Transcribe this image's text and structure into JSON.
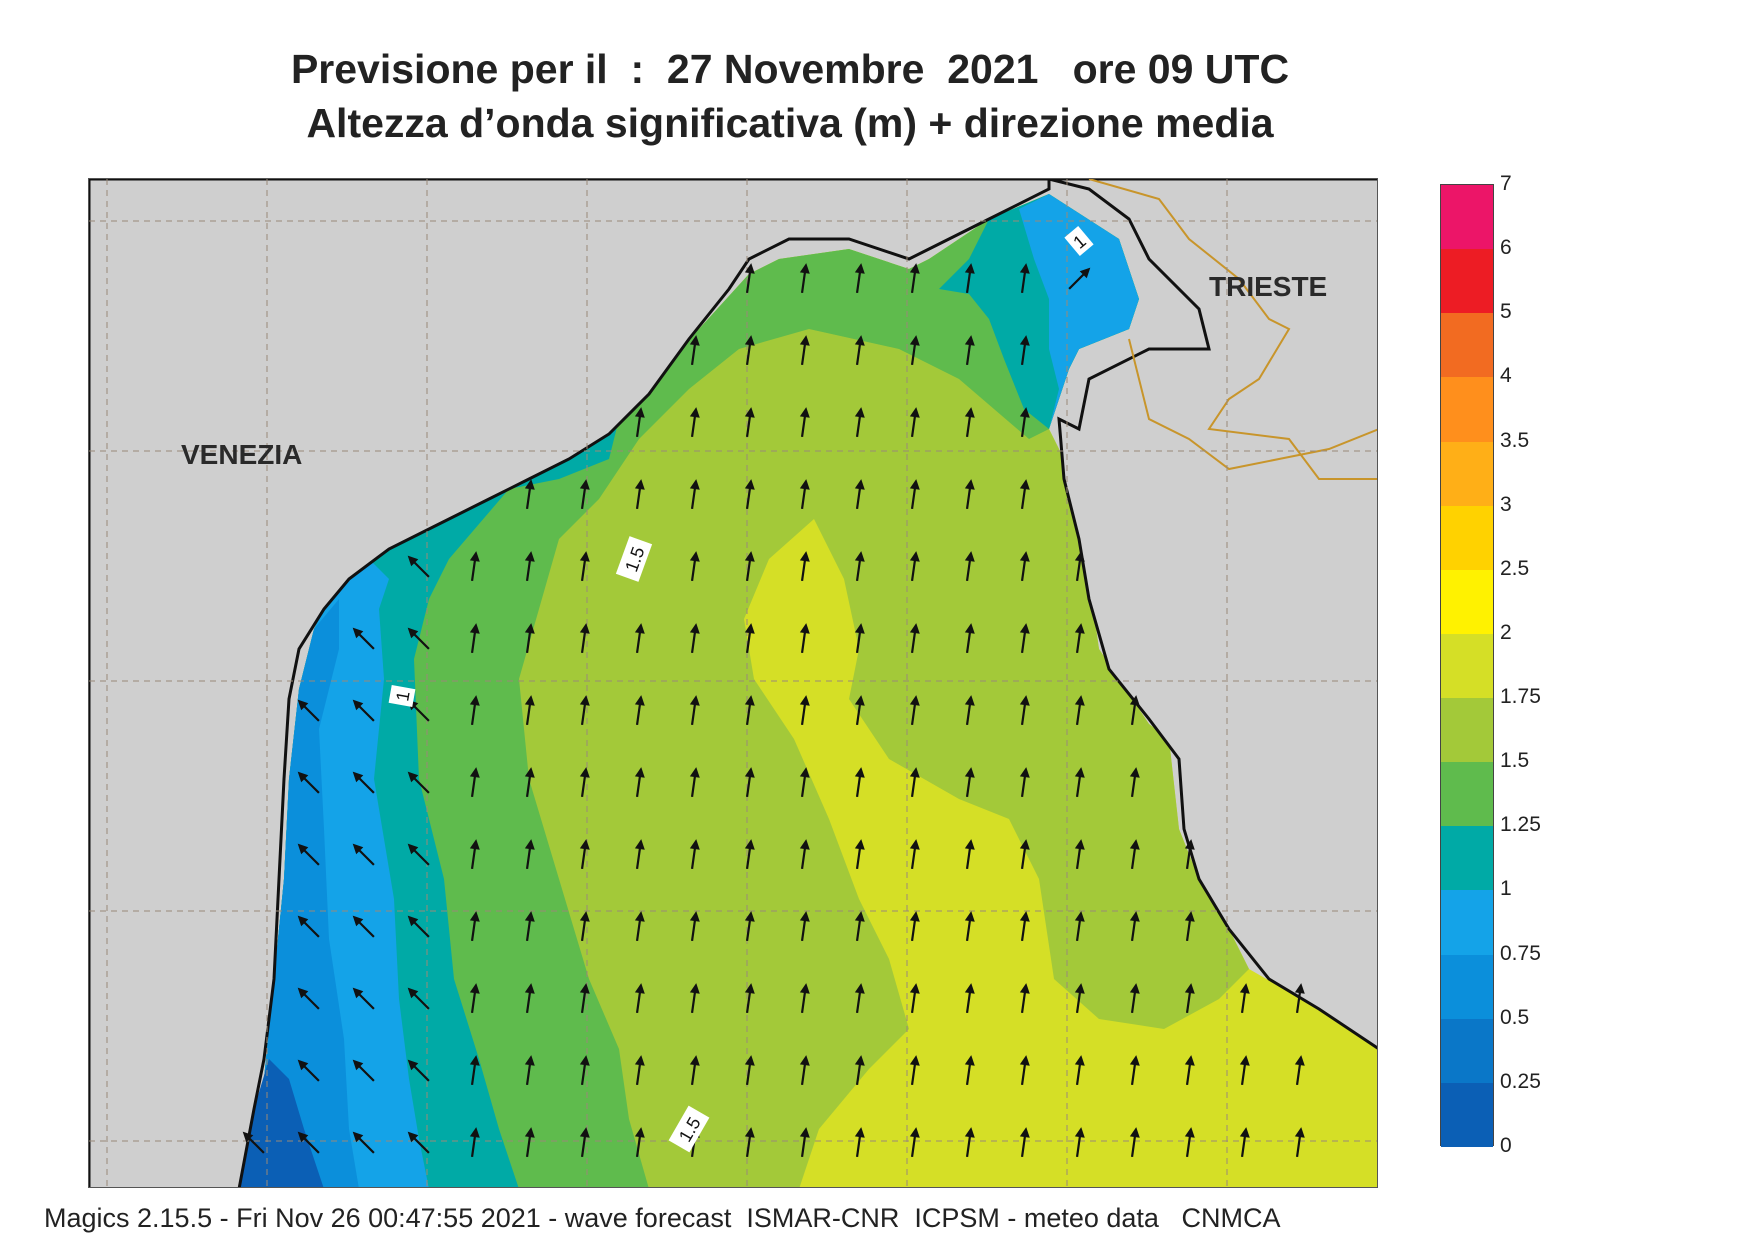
{
  "title_line1": "Previsione per il  :  27 Novembre  2021   ore 09 UTC",
  "title_line2": "Altezza d’onda significativa (m) + direzione media",
  "map": {
    "places": [
      {
        "name": "VENEZIA"
      },
      {
        "name": "TRIESTE"
      }
    ],
    "contour_labels": [
      "1",
      "1.5",
      "1",
      "1.5"
    ],
    "wave_direction_deg": 8
  },
  "colorbar": {
    "levels": [
      "0",
      "0.25",
      "0.5",
      "0.75",
      "1",
      "1.25",
      "1.5",
      "1.75",
      "2",
      "2.5",
      "3",
      "3.5",
      "4",
      "5",
      "6",
      "7"
    ],
    "colors": [
      "#0b5fb5",
      "#0a77c8",
      "#0b8fdb",
      "#14a3e8",
      "#00aaa6",
      "#5fbb4d",
      "#a3c939",
      "#d5df26",
      "#fff200",
      "#ffd200",
      "#ffaf17",
      "#ff8f1c",
      "#f26b21",
      "#ed1c24",
      "#ec1568"
    ]
  },
  "footer": "Magics 2.15.5 - Fri Nov 26 00:47:55 2021 - wave forecast  ISMAR-CNR  ICPSM - meteo data   CNMCA",
  "colors": {
    "land": "#cfcfcf",
    "coast": "#111111",
    "border": "#c8952b",
    "grid": "#9a8a78"
  }
}
